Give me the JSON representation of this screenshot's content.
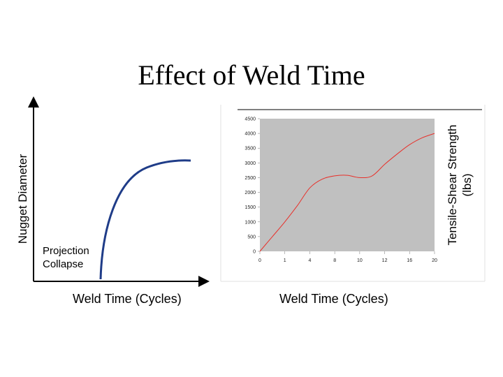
{
  "page": {
    "title": "Effect of Weld Time"
  },
  "chart_data": [
    {
      "type": "line",
      "title": "",
      "xlabel": "Weld Time (Cycles)",
      "ylabel": "Nugget Diameter",
      "annotation": "Projection Collapse",
      "annotation_lines": [
        "Projection",
        "Collapse"
      ],
      "axes_ticks": false,
      "series": [
        {
          "color": "#1f3c88",
          "shape": "qualitative rising curve: starts vertically near the left, bends and flattens into a plateau"
        }
      ]
    },
    {
      "type": "line",
      "title": "",
      "xlabel": "Weld Time (Cycles)",
      "ylabel": "Tensile-Shear Strength (lbs)",
      "ylabel_lines": [
        "Tensile-Shear Strength",
        "(lbs)"
      ],
      "ylim": [
        0,
        4500
      ],
      "yticks": [
        0,
        500,
        1000,
        1500,
        2000,
        2500,
        3000,
        3500,
        4000,
        4500
      ],
      "xtick_labels": [
        "0",
        "1",
        "4",
        "8",
        "10",
        "12",
        "16",
        "20"
      ],
      "grid": false,
      "plot_background": "#c0c0c0",
      "series": [
        {
          "color": "#e8302a",
          "x": [
            0,
            0.5,
            1,
            1.5,
            2,
            2.5,
            3,
            3.5,
            4,
            4.5,
            5,
            5.5,
            6,
            6.5,
            7
          ],
          "y": [
            0,
            500,
            1000,
            1550,
            2150,
            2450,
            2560,
            2580,
            2500,
            2560,
            2950,
            3300,
            3620,
            3850,
            4000
          ]
        }
      ]
    }
  ]
}
